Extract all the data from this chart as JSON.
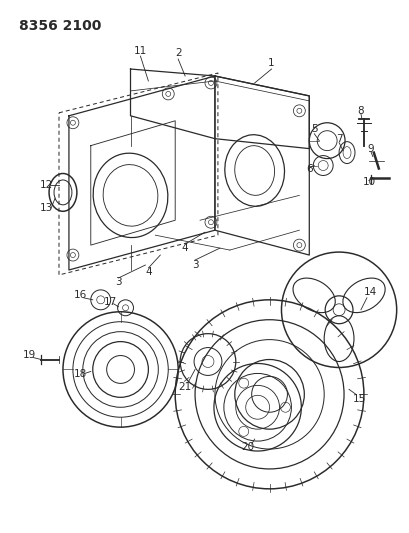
{
  "title": "8356 2100",
  "bg_color": "#ffffff",
  "line_color": "#2a2a2a",
  "label_color": "#2a2a2a",
  "title_fontsize": 10,
  "label_fontsize": 7.5
}
